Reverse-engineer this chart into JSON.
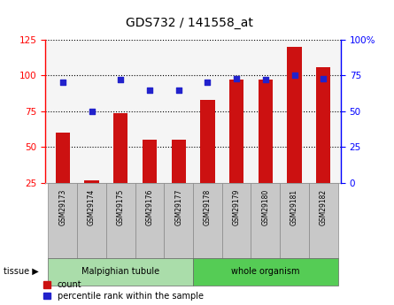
{
  "title": "GDS732 / 141558_at",
  "samples": [
    "GSM29173",
    "GSM29174",
    "GSM29175",
    "GSM29176",
    "GSM29177",
    "GSM29178",
    "GSM29179",
    "GSM29180",
    "GSM29181",
    "GSM29182"
  ],
  "counts": [
    60,
    27,
    74,
    55,
    55,
    83,
    97,
    97,
    120,
    106
  ],
  "percentiles": [
    70,
    50,
    72,
    65,
    65,
    70,
    73,
    72,
    75,
    73
  ],
  "left_ylim": [
    25,
    125
  ],
  "left_yticks": [
    25,
    50,
    75,
    100,
    125
  ],
  "right_ylim": [
    0,
    100
  ],
  "right_yticks": [
    0,
    25,
    50,
    75,
    100
  ],
  "bar_color": "#cc1111",
  "dot_color": "#2222cc",
  "background_color": "#ffffff",
  "grid_color": "#000000",
  "tissue_groups": [
    {
      "label": "Malpighian tubule",
      "start": 0,
      "end": 4,
      "color": "#aaddaa"
    },
    {
      "label": "whole organism",
      "start": 5,
      "end": 9,
      "color": "#55cc55"
    }
  ],
  "legend_count_label": "count",
  "legend_pct_label": "percentile rank within the sample",
  "tissue_label": "tissue",
  "bar_width": 0.5
}
